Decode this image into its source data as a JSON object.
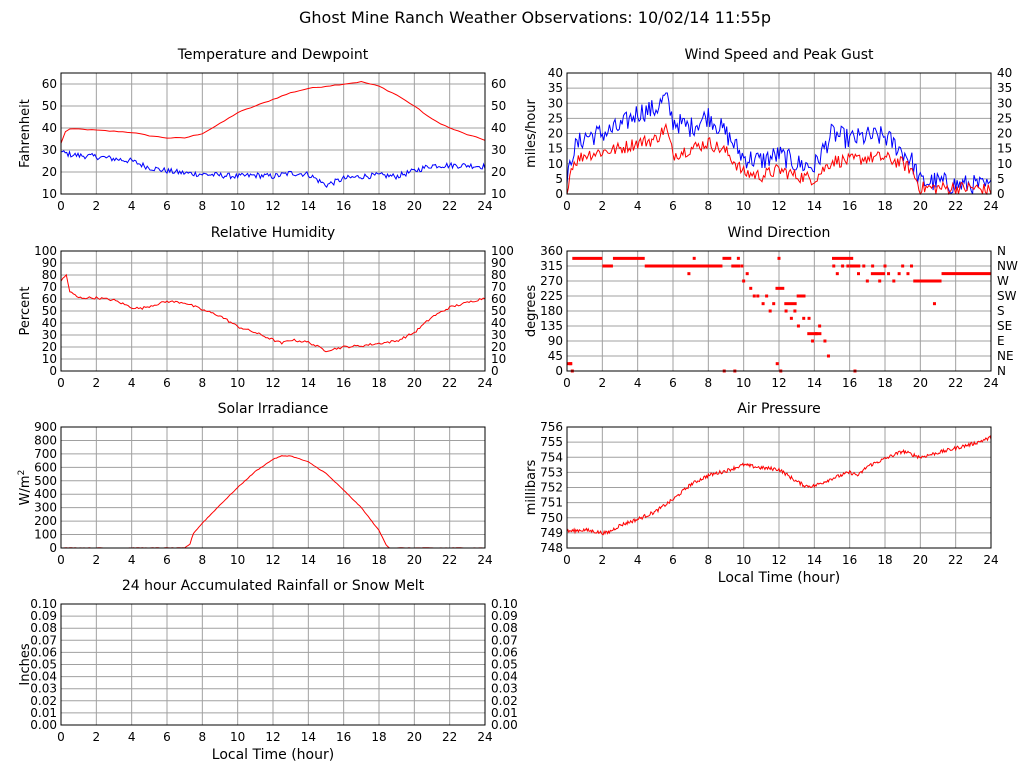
{
  "page": {
    "title": "Ghost Mine Ranch Weather Observations: 10/02/14 11:55p"
  },
  "chart_data": [
    {
      "id": "temperature",
      "type": "line",
      "title": "Temperature and Dewpoint",
      "xlabel": "",
      "ylabel": "Fahrenheit",
      "xlim": [
        0,
        24
      ],
      "ylim": [
        10,
        65
      ],
      "x_ticks": [
        0,
        2,
        4,
        6,
        8,
        10,
        12,
        14,
        16,
        18,
        20,
        22,
        24
      ],
      "y_ticks": [
        10,
        20,
        30,
        40,
        50,
        60
      ],
      "y_tick_labels": [
        "10",
        "20",
        "30",
        "40",
        "50",
        "60"
      ],
      "right_tick_labels": [
        "10",
        "20",
        "30",
        "40",
        "50",
        "60"
      ],
      "grid": true,
      "series": [
        {
          "color": "#ff0000",
          "noise": 0.2,
          "step": 0.25,
          "x": [
            0,
            0.3,
            1,
            2,
            3,
            4,
            5,
            6,
            7,
            8,
            9,
            10,
            11,
            12,
            13,
            14,
            15,
            16,
            17,
            18,
            19,
            20,
            21,
            22,
            23,
            24
          ],
          "y": [
            33,
            39.5,
            39.5,
            39,
            38.5,
            38,
            36.5,
            35.5,
            35.5,
            37.5,
            42,
            47,
            50,
            53,
            56,
            58,
            59,
            60,
            61,
            59,
            55,
            50,
            44,
            40,
            37,
            34.5
          ]
        },
        {
          "color": "#0000ff",
          "noise": 1.3,
          "step": 0.08,
          "x": [
            0,
            0.5,
            1,
            2,
            3,
            4,
            5,
            6,
            7,
            8,
            9,
            10,
            11,
            12,
            13,
            14,
            15,
            16,
            17,
            18,
            19,
            20,
            21,
            22,
            23,
            24
          ],
          "y": [
            29,
            28,
            27.5,
            27,
            26,
            25,
            22,
            20.5,
            19.5,
            19,
            18.5,
            18,
            18.5,
            18,
            19.5,
            19,
            14,
            17,
            18,
            18.5,
            18,
            20.5,
            23,
            23,
            23,
            22.5
          ]
        }
      ]
    },
    {
      "id": "wind-speed",
      "type": "line",
      "title": "Wind Speed and Peak Gust",
      "xlabel": "",
      "ylabel": "miles/hour",
      "xlim": [
        0,
        24
      ],
      "ylim": [
        0,
        40
      ],
      "x_ticks": [
        0,
        2,
        4,
        6,
        8,
        10,
        12,
        14,
        16,
        18,
        20,
        22,
        24
      ],
      "y_ticks": [
        0,
        5,
        10,
        15,
        20,
        25,
        30,
        35,
        40
      ],
      "y_tick_labels": [
        "0",
        "5",
        "10",
        "15",
        "20",
        "25",
        "30",
        "35",
        "40"
      ],
      "right_tick_labels": [
        "0",
        "5",
        "10",
        "15",
        "20",
        "25",
        "30",
        "35",
        "40"
      ],
      "grid": true,
      "series": [
        {
          "color": "#0000ff",
          "noise": 3.5,
          "step": 0.08,
          "x": [
            0,
            0.3,
            1,
            2,
            3,
            4,
            5,
            5.6,
            6,
            7,
            8,
            9,
            10,
            11,
            12,
            13,
            14,
            15,
            16,
            17,
            18,
            19,
            19.5,
            20,
            21,
            22,
            23,
            24
          ],
          "y": [
            3,
            14,
            19,
            20,
            22,
            27,
            28,
            32,
            24,
            22,
            26,
            20,
            12,
            11,
            13,
            10,
            9,
            20,
            18,
            19,
            19,
            14,
            11,
            4,
            4,
            3,
            3,
            2
          ]
        },
        {
          "color": "#ff0000",
          "noise": 2.2,
          "step": 0.08,
          "x": [
            0,
            0.3,
            1,
            2,
            3,
            4,
            5,
            5.6,
            6,
            7,
            8,
            9,
            10,
            11,
            12,
            13,
            14,
            15,
            16,
            17,
            18,
            19,
            19.5,
            20,
            21,
            22,
            23,
            24
          ],
          "y": [
            2,
            10,
            13,
            14,
            15,
            17,
            18,
            22,
            13,
            15,
            17,
            14,
            7,
            6,
            8,
            6,
            5,
            11,
            11,
            12,
            12,
            10,
            8,
            2,
            2,
            2,
            2,
            1
          ]
        }
      ]
    },
    {
      "id": "humidity",
      "type": "line",
      "title": "Relative Humidity",
      "xlabel": "",
      "ylabel": "Percent",
      "xlim": [
        0,
        24
      ],
      "ylim": [
        0,
        100
      ],
      "x_ticks": [
        0,
        2,
        4,
        6,
        8,
        10,
        12,
        14,
        16,
        18,
        20,
        22,
        24
      ],
      "y_ticks": [
        0,
        10,
        20,
        30,
        40,
        50,
        60,
        70,
        80,
        90,
        100
      ],
      "y_tick_labels": [
        "0",
        "10",
        "20",
        "30",
        "40",
        "50",
        "60",
        "70",
        "80",
        "90",
        "100"
      ],
      "right_tick_labels": [
        "0",
        "10",
        "20",
        "30",
        "40",
        "50",
        "60",
        "70",
        "80",
        "90",
        "100"
      ],
      "grid": true,
      "series": [
        {
          "color": "#ff0000",
          "noise": 1.0,
          "step": 0.1,
          "x": [
            0,
            0.3,
            0.5,
            1,
            2,
            3,
            4,
            4.5,
            5,
            6,
            7,
            8,
            9,
            10,
            11,
            12,
            12.5,
            13,
            14,
            15,
            16,
            17,
            18,
            19,
            20,
            21,
            22,
            23,
            24
          ],
          "y": [
            75,
            80,
            66,
            61,
            61,
            59,
            53,
            52,
            54,
            58,
            57,
            51,
            46,
            37,
            32,
            26,
            23,
            26,
            24,
            17,
            20,
            21,
            23,
            25,
            32,
            45,
            53,
            57,
            61
          ]
        }
      ]
    },
    {
      "id": "wind-direction",
      "type": "scatter",
      "title": "Wind Direction",
      "xlabel": "",
      "ylabel": "degrees",
      "xlim": [
        0,
        24
      ],
      "ylim": [
        0,
        360
      ],
      "x_ticks": [
        0,
        2,
        4,
        6,
        8,
        10,
        12,
        14,
        16,
        18,
        20,
        22,
        24
      ],
      "y_ticks": [
        0,
        45,
        90,
        135,
        180,
        225,
        270,
        315,
        360
      ],
      "y_tick_labels": [
        "0",
        "45",
        "90",
        "135",
        "180",
        "225",
        "270",
        "315",
        "360"
      ],
      "right_tick_labels": [
        "N",
        "NE",
        "E",
        "SE",
        "S",
        "SW",
        "W",
        "NW",
        "N"
      ],
      "grid": true,
      "series": [
        {
          "color": "#ff0000",
          "segments": [
            [
              0,
              0.3,
              22
            ],
            [
              0.3,
              2.0,
              338
            ],
            [
              2.0,
              2.6,
              315
            ],
            [
              2.6,
              4.4,
              338
            ],
            [
              4.4,
              8.8,
              315
            ],
            [
              8.8,
              9.3,
              338
            ],
            [
              9.3,
              9.8,
              315
            ],
            [
              11.8,
              12.3,
              248
            ],
            [
              12.3,
              13.0,
              202
            ],
            [
              13.0,
              13.5,
              225
            ],
            [
              13.6,
              14.4,
              112
            ],
            [
              15.0,
              16.2,
              338
            ],
            [
              16.0,
              16.6,
              315
            ],
            [
              17.2,
              18.0,
              292
            ],
            [
              19.6,
              21.2,
              270
            ],
            [
              21.2,
              24.0,
              292
            ]
          ],
          "points": [
            [
              0.3,
              0
            ],
            [
              0.2,
              22
            ],
            [
              6.9,
              292
            ],
            [
              7.2,
              338
            ],
            [
              8.9,
              0
            ],
            [
              9.5,
              0
            ],
            [
              9.7,
              338
            ],
            [
              9.9,
              315
            ],
            [
              10.0,
              270
            ],
            [
              10.2,
              292
            ],
            [
              10.4,
              248
            ],
            [
              10.6,
              225
            ],
            [
              10.8,
              225
            ],
            [
              11.1,
              202
            ],
            [
              11.3,
              225
            ],
            [
              11.5,
              180
            ],
            [
              11.7,
              202
            ],
            [
              11.9,
              22
            ],
            [
              12.1,
              0
            ],
            [
              12.0,
              338
            ],
            [
              12.4,
              180
            ],
            [
              12.7,
              158
            ],
            [
              12.9,
              180
            ],
            [
              13.1,
              135
            ],
            [
              13.3,
              225
            ],
            [
              13.4,
              158
            ],
            [
              13.7,
              158
            ],
            [
              13.9,
              90
            ],
            [
              14.1,
              112
            ],
            [
              14.3,
              135
            ],
            [
              14.6,
              90
            ],
            [
              14.8,
              45
            ],
            [
              15.1,
              315
            ],
            [
              15.3,
              292
            ],
            [
              15.6,
              315
            ],
            [
              15.9,
              315
            ],
            [
              16.3,
              0
            ],
            [
              16.5,
              292
            ],
            [
              16.8,
              315
            ],
            [
              17.0,
              270
            ],
            [
              17.3,
              315
            ],
            [
              17.7,
              270
            ],
            [
              18.0,
              315
            ],
            [
              18.2,
              292
            ],
            [
              18.5,
              270
            ],
            [
              18.8,
              292
            ],
            [
              19.0,
              315
            ],
            [
              19.3,
              292
            ],
            [
              19.5,
              315
            ],
            [
              20.8,
              202
            ],
            [
              21.0,
              270
            ]
          ]
        }
      ]
    },
    {
      "id": "solar",
      "type": "line",
      "title": "Solar Irradiance",
      "xlabel": "",
      "ylabel": "W/m",
      "ylabel_superscript": "2",
      "xlim": [
        0,
        24
      ],
      "ylim": [
        0,
        900
      ],
      "x_ticks": [
        0,
        2,
        4,
        6,
        8,
        10,
        12,
        14,
        16,
        18,
        20,
        22,
        24
      ],
      "y_ticks": [
        0,
        100,
        200,
        300,
        400,
        500,
        600,
        700,
        800,
        900
      ],
      "y_tick_labels": [
        "0",
        "100",
        "200",
        "300",
        "400",
        "500",
        "600",
        "700",
        "800",
        "900"
      ],
      "right_tick_labels": [],
      "grid": true,
      "series": [
        {
          "color": "#ff0000",
          "noise": 2,
          "step": 0.1,
          "x": [
            0,
            7.0,
            7.3,
            7.5,
            8,
            9,
            10,
            11,
            12,
            12.5,
            13,
            14,
            15,
            16,
            17,
            18,
            18.4,
            18.6,
            24
          ],
          "y": [
            0,
            0,
            30,
            110,
            185,
            320,
            450,
            570,
            660,
            685,
            685,
            640,
            555,
            430,
            300,
            130,
            25,
            0,
            0
          ]
        }
      ]
    },
    {
      "id": "pressure",
      "type": "line",
      "title": "Air Pressure",
      "xlabel": "Local Time (hour)",
      "ylabel": "millibars",
      "xlim": [
        0,
        24
      ],
      "ylim": [
        748,
        756
      ],
      "x_ticks": [
        0,
        2,
        4,
        6,
        8,
        10,
        12,
        14,
        16,
        18,
        20,
        22,
        24
      ],
      "y_ticks": [
        748,
        749,
        750,
        751,
        752,
        753,
        754,
        755,
        756
      ],
      "y_tick_labels": [
        "748",
        "749",
        "750",
        "751",
        "752",
        "753",
        "754",
        "755",
        "756"
      ],
      "right_tick_labels": [],
      "grid": true,
      "series": [
        {
          "color": "#ff0000",
          "noise": 0.12,
          "step": 0.05,
          "x": [
            0,
            1,
            2,
            2.3,
            3,
            4,
            5,
            6,
            7,
            8,
            9,
            10,
            11,
            12,
            13,
            13.5,
            14,
            15,
            16,
            16.5,
            17,
            18,
            19,
            20,
            21,
            22,
            23,
            24
          ],
          "y": [
            749.1,
            749.2,
            749.0,
            749.0,
            749.5,
            749.9,
            750.4,
            751.2,
            752.2,
            752.8,
            753.1,
            753.5,
            753.3,
            753.2,
            752.4,
            752.1,
            752.1,
            752.6,
            753.0,
            752.8,
            753.4,
            753.9,
            754.4,
            754.0,
            754.3,
            754.6,
            754.9,
            755.3
          ]
        }
      ]
    },
    {
      "id": "rainfall",
      "type": "line",
      "title": "24 hour Accumulated Rainfall or Snow Melt",
      "xlabel": "Local Time (hour)",
      "ylabel": "Inches",
      "xlim": [
        0,
        24
      ],
      "ylim": [
        0,
        0.1
      ],
      "x_ticks": [
        0,
        2,
        4,
        6,
        8,
        10,
        12,
        14,
        16,
        18,
        20,
        22,
        24
      ],
      "y_ticks": [
        0,
        0.01,
        0.02,
        0.03,
        0.04,
        0.05,
        0.06,
        0.07,
        0.08,
        0.09,
        0.1
      ],
      "y_tick_labels": [
        "0.00",
        "0.01",
        "0.02",
        "0.03",
        "0.04",
        "0.05",
        "0.06",
        "0.07",
        "0.08",
        "0.09",
        "0.10"
      ],
      "right_tick_labels": [
        "0.00",
        "0.01",
        "0.02",
        "0.03",
        "0.04",
        "0.05",
        "0.06",
        "0.07",
        "0.08",
        "0.09",
        "0.10"
      ],
      "grid": true,
      "series": [
        {
          "color": "#ff0000",
          "noise": 0,
          "step": 1,
          "x": [
            0,
            24
          ],
          "y": [
            0,
            0
          ]
        }
      ]
    }
  ]
}
